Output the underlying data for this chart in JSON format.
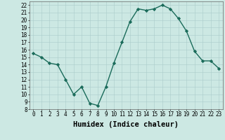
{
  "title": "",
  "xlabel": "Humidex (Indice chaleur)",
  "x": [
    0,
    1,
    2,
    3,
    4,
    5,
    6,
    7,
    8,
    9,
    10,
    11,
    12,
    13,
    14,
    15,
    16,
    17,
    18,
    19,
    20,
    21,
    22,
    23
  ],
  "y": [
    15.5,
    15.0,
    14.2,
    14.0,
    12.0,
    10.0,
    11.0,
    8.8,
    8.5,
    11.0,
    14.2,
    17.0,
    19.8,
    21.5,
    21.3,
    21.5,
    22.0,
    21.5,
    20.2,
    18.5,
    15.8,
    14.5,
    14.5,
    13.5
  ],
  "line_color": "#1a6b5a",
  "marker": "D",
  "marker_size": 2.2,
  "bg_color": "#cce8e3",
  "grid_color": "#aaccca",
  "xlim": [
    -0.5,
    23.5
  ],
  "ylim": [
    8,
    22.5
  ],
  "yticks": [
    8,
    9,
    10,
    11,
    12,
    13,
    14,
    15,
    16,
    17,
    18,
    19,
    20,
    21,
    22
  ],
  "xticks": [
    0,
    1,
    2,
    3,
    4,
    5,
    6,
    7,
    8,
    9,
    10,
    11,
    12,
    13,
    14,
    15,
    16,
    17,
    18,
    19,
    20,
    21,
    22,
    23
  ],
  "tick_fontsize": 5.5,
  "xlabel_fontsize": 7.5,
  "line_width": 1.0
}
